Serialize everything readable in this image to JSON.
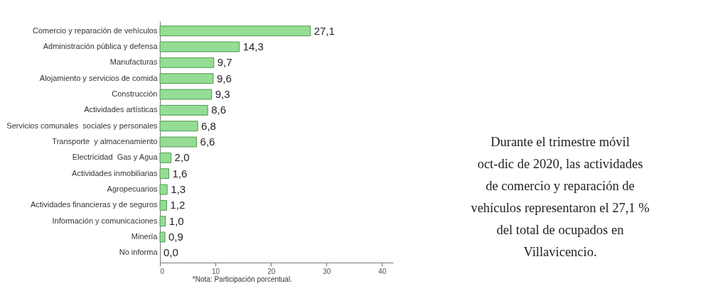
{
  "chart_data": {
    "type": "bar",
    "orientation": "horizontal",
    "categories": [
      "Comercio y reparación de vehículos",
      "Administración pública y defensa",
      "Manufacturas",
      "Alojamiento y servicios de comida",
      "Construcción",
      "Actividades artísticas",
      "Servicios comunales  sociales y personales",
      "Transporte  y almacenamiento",
      "Electricidad  Gas y Agua",
      "Actividades inmobiliarias",
      "Agropecuarios",
      "Actividades financieras y de seguros",
      "Información y comunicaciones",
      "Minería",
      "No informa"
    ],
    "values": [
      27.1,
      14.3,
      9.7,
      9.6,
      9.3,
      8.6,
      6.8,
      6.6,
      2.0,
      1.6,
      1.3,
      1.2,
      1.0,
      0.9,
      0.0
    ],
    "value_labels": [
      "27,1",
      "14,3",
      "9,7",
      "9,6",
      "9,3",
      "8,6",
      "6,8",
      "6,6",
      "2,0",
      "1,6",
      "1,3",
      "1,2",
      "1,0",
      "0,9",
      "0,0"
    ],
    "color": "#95dc95",
    "xlim": [
      0,
      42
    ],
    "xticks": [
      0,
      10,
      20,
      30,
      40
    ],
    "grid": false,
    "annotations": [
      "*Nota: Participación porcentual.",
      "Durante el trimestre móvil\noct-dic de 2020, las actividades\nde comercio y reparación de\nvehículos representaron el 27,1 %\ndel total de ocupados en\nVillavicencio."
    ]
  }
}
